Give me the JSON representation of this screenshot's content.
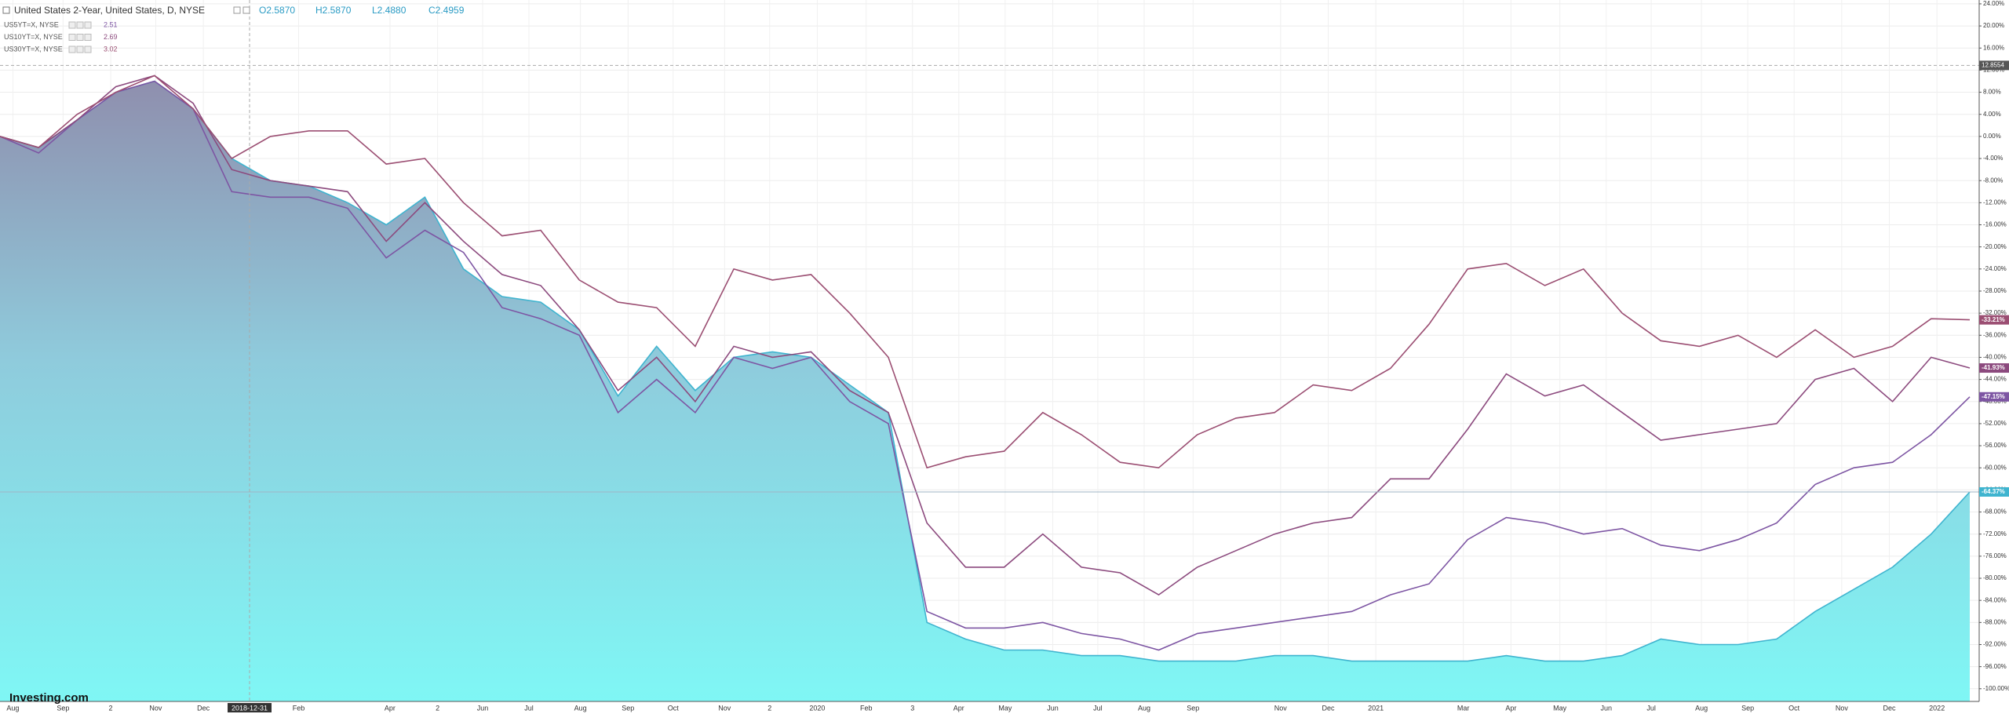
{
  "chart_data": {
    "type": "line",
    "title": "United States 2-Year, United States, D, NYSE",
    "ohlc": [
      "O2.5870",
      "H2.5870",
      "L2.4880",
      "C2.4959"
    ],
    "brand": "Investing.com",
    "crosshair": {
      "y": 12.8554,
      "x_label": "2018-12-31"
    },
    "ylim": [
      -102.3,
      24.7
    ],
    "yticks": [
      {
        "value": 24,
        "label": "24.00%"
      },
      {
        "value": 20,
        "label": "20.00%"
      },
      {
        "value": 16,
        "label": "16.00%"
      },
      {
        "value": 12,
        "label": "12.00%"
      },
      {
        "value": 8,
        "label": "8.00%"
      },
      {
        "value": 4,
        "label": "4.00%"
      },
      {
        "value": 0,
        "label": "0.00%"
      },
      {
        "value": -4,
        "label": "-4.00%"
      },
      {
        "value": -8,
        "label": "-8.00%"
      },
      {
        "value": -12,
        "label": "-12.00%"
      },
      {
        "value": -16,
        "label": "-16.00%"
      },
      {
        "value": -20,
        "label": "-20.00%"
      },
      {
        "value": -24,
        "label": "-24.00%"
      },
      {
        "value": -28,
        "label": "-28.00%"
      },
      {
        "value": -32,
        "label": "-32.00%"
      },
      {
        "value": -36,
        "label": "-36.00%"
      },
      {
        "value": -40,
        "label": "-40.00%"
      },
      {
        "value": -44,
        "label": "-44.00%"
      },
      {
        "value": -48,
        "label": "-48.00%"
      },
      {
        "value": -52,
        "label": "-52.00%"
      },
      {
        "value": -56,
        "label": "-56.00%"
      },
      {
        "value": -60,
        "label": "-60.00%"
      },
      {
        "value": -64,
        "label": "-64.00%"
      },
      {
        "value": -68,
        "label": "-68.00%"
      },
      {
        "value": -72,
        "label": "-72.00%"
      },
      {
        "value": -76,
        "label": "-76.00%"
      },
      {
        "value": -80,
        "label": "-80.00%"
      },
      {
        "value": -84,
        "label": "-84.00%"
      },
      {
        "value": -88,
        "label": "-88.00%"
      },
      {
        "value": -92,
        "label": "-92.00%"
      },
      {
        "value": -96,
        "label": "-96.00%"
      },
      {
        "value": -100,
        "label": "-100.00%"
      }
    ],
    "x_tick_labels": [
      "Aug",
      "Sep",
      "2",
      "Nov",
      "Dec",
      "Feb",
      "Apr",
      "2",
      "Jun",
      "Jul",
      "Aug",
      "Sep",
      "Oct",
      "Nov",
      "2",
      "2020",
      "Feb",
      "3",
      "Apr",
      "May",
      "Jun",
      "Jul",
      "Aug",
      "Sep",
      "Nov",
      "Dec",
      "2021",
      "Mar",
      "Apr",
      "May",
      "Jun",
      "Jul",
      "Aug",
      "Sep",
      "Oct",
      "Nov",
      "Dec",
      "2022"
    ],
    "grid": true,
    "series": [
      {
        "name": "United States 2-Year",
        "style": "area",
        "color": "#3fb4cf",
        "last_label": "-64.37%",
        "values": [
          0,
          -2,
          3,
          8,
          10,
          5,
          -4,
          -8,
          -9,
          -12,
          -16,
          -11,
          -24,
          -29,
          -30,
          -35,
          -47,
          -38,
          -46,
          -40,
          -39,
          -40,
          -45,
          -50,
          -88,
          -91,
          -93,
          -93,
          -94,
          -94,
          -95,
          -95,
          -95,
          -94,
          -94,
          -95,
          -95,
          -95,
          -95,
          -94,
          -95,
          -95,
          -94,
          -91,
          -92,
          -92,
          -91,
          -86,
          -82,
          -78,
          -72,
          -64.37
        ]
      },
      {
        "name": "US5YT=X, NYSE",
        "last": 2.51,
        "color": "#7d55a3",
        "last_label": "-47.15%",
        "values": [
          0,
          -3,
          3,
          8,
          10,
          5,
          -10,
          -11,
          -11,
          -13,
          -22,
          -17,
          -21,
          -31,
          -33,
          -36,
          -50,
          -44,
          -50,
          -40,
          -42,
          -40,
          -48,
          -52,
          -86,
          -89,
          -89,
          -88,
          -90,
          -91,
          -93,
          -90,
          -89,
          -88,
          -87,
          -86,
          -83,
          -81,
          -73,
          -69,
          -70,
          -72,
          -71,
          -74,
          -75,
          -73,
          -70,
          -63,
          -60,
          -59,
          -54,
          -47.15
        ]
      },
      {
        "name": "US10YT=X, NYSE",
        "last": 2.69,
        "color": "#8c4a7e",
        "last_label": "-41.93%",
        "values": [
          0,
          -2,
          3,
          9,
          11,
          6,
          -6,
          -8,
          -9,
          -10,
          -19,
          -12,
          -19,
          -25,
          -27,
          -35,
          -46,
          -40,
          -48,
          -38,
          -40,
          -39,
          -46,
          -50,
          -70,
          -78,
          -78,
          -72,
          -78,
          -79,
          -83,
          -78,
          -75,
          -72,
          -70,
          -69,
          -62,
          -62,
          -53,
          -43,
          -47,
          -45,
          -50,
          -55,
          -54,
          -53,
          -52,
          -44,
          -42,
          -48,
          -40,
          -41.93
        ]
      },
      {
        "name": "US30YT=X, NYSE",
        "last": 3.02,
        "color": "#9b4e72",
        "last_label": "-33.21%",
        "values": [
          0,
          -2,
          4,
          8,
          11,
          5,
          -4,
          0,
          1,
          1,
          -5,
          -4,
          -12,
          -18,
          -17,
          -26,
          -30,
          -31,
          -38,
          -24,
          -26,
          -25,
          -32,
          -40,
          -60,
          -58,
          -57,
          -50,
          -54,
          -59,
          -60,
          -54,
          -51,
          -50,
          -45,
          -46,
          -42,
          -34,
          -24,
          -23,
          -27,
          -24,
          -32,
          -37,
          -38,
          -36,
          -40,
          -35,
          -40,
          -38,
          -33,
          -33.21
        ]
      }
    ]
  }
}
